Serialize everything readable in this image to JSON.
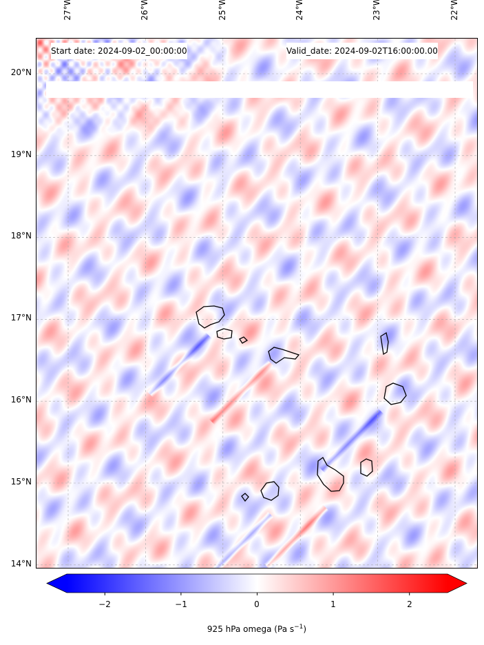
{
  "annotations": {
    "start": "Start date: 2024-09-02_00:00:00",
    "valid": "Valid_date: 2024-09-02T16:00:00.00"
  },
  "lon_ticks": [
    "27°W",
    "26°W",
    "25°W",
    "24°W",
    "23°W",
    "22°W"
  ],
  "lat_ticks": [
    "20°N",
    "19°N",
    "18°N",
    "17°N",
    "16°N",
    "15°N",
    "14°N"
  ],
  "colorbar": {
    "ticks": [
      "−2",
      "−1",
      "0",
      "1",
      "2"
    ],
    "tick_values": [
      -2,
      -1,
      0,
      1,
      2
    ],
    "range": [
      -2.5,
      2.5
    ],
    "extend": "both",
    "label": "925 hPa omega (Pa s",
    "label_sup": "−1",
    "label_close": ")",
    "cmap": [
      "#0000ff",
      "#ffffff",
      "#ff0000"
    ]
  },
  "chart_data": {
    "type": "heatmap",
    "title": "",
    "variable": "925 hPa omega",
    "units": "Pa s^-1",
    "lon_range": [
      -27.4,
      -21.7
    ],
    "lat_range": [
      13.95,
      20.45
    ],
    "lon_ticks": [
      -27,
      -26,
      -25,
      -24,
      -23,
      -22
    ],
    "lat_ticks": [
      20,
      19,
      18,
      17,
      16,
      15,
      14
    ],
    "vmin": -2.5,
    "vmax": 2.5,
    "grid": true
  }
}
